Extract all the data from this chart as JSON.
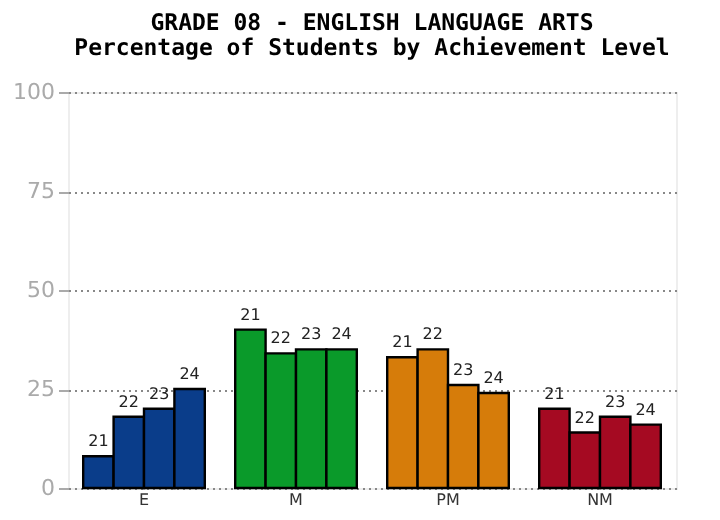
{
  "chart_data": {
    "type": "bar",
    "title": "GRADE 08 - ENGLISH LANGUAGE ARTS",
    "subtitle": "Percentage of Students by Achievement Level",
    "categories": [
      "E",
      "M",
      "PM",
      "NM"
    ],
    "series": [
      {
        "name": "21",
        "colors": [
          "#0a3d8a",
          "#0a9a2a",
          "#d67c0a",
          "#a50a22"
        ],
        "values": [
          8,
          40,
          33,
          20
        ]
      },
      {
        "name": "22",
        "colors": [
          "#0a3d8a",
          "#0a9a2a",
          "#d67c0a",
          "#a50a22"
        ],
        "values": [
          18,
          34,
          35,
          14
        ]
      },
      {
        "name": "23",
        "colors": [
          "#0a3d8a",
          "#0a9a2a",
          "#d67c0a",
          "#a50a22"
        ],
        "values": [
          20,
          35,
          26,
          18
        ]
      },
      {
        "name": "24",
        "colors": [
          "#0a3d8a",
          "#0a9a2a",
          "#d67c0a",
          "#a50a22"
        ],
        "values": [
          25,
          35,
          24,
          16
        ]
      }
    ],
    "ylim": [
      0,
      100
    ],
    "yticks": [
      0,
      25,
      50,
      75,
      100
    ],
    "grid": "y"
  }
}
